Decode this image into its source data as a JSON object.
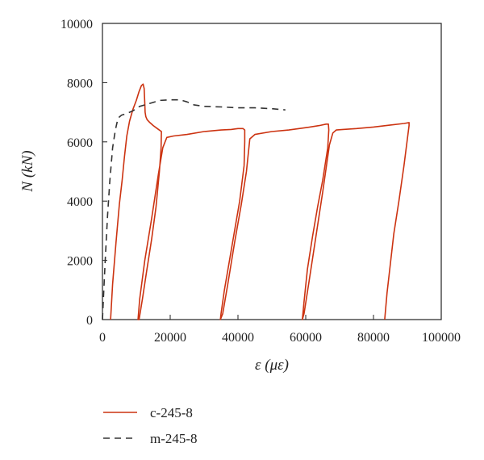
{
  "chart_data": {
    "type": "line",
    "xlabel": "ε (με)",
    "ylabel": "N (kN)",
    "xlim": [
      0,
      100000
    ],
    "ylim": [
      0,
      10000
    ],
    "xticks": [
      "0",
      "20000",
      "40000",
      "60000",
      "80000",
      "100000"
    ],
    "yticks": [
      "0",
      "2000",
      "4000",
      "6000",
      "8000",
      "10000"
    ],
    "grid": false,
    "legend_position": "bottom",
    "series": [
      {
        "name": "c-245-8",
        "color": "#cc3311",
        "style": "solid",
        "x": [
          2400,
          3000,
          4000,
          5000,
          5800,
          6500,
          7200,
          8000,
          9000,
          10000,
          10800,
          11500,
          12000,
          12300,
          12500,
          12600,
          12800,
          13200,
          14000,
          15000,
          16200,
          17400,
          17300,
          16800,
          15800,
          14500,
          13000,
          11800,
          10800,
          10500,
          11000,
          12500,
          14500,
          16500,
          17800,
          19000,
          21000,
          25000,
          30000,
          35000,
          38000,
          40000,
          41500,
          42000,
          42000,
          41800,
          40500,
          39000,
          37500,
          36000,
          35000,
          34800,
          35500,
          37000,
          39000,
          41000,
          42500,
          43500,
          45000,
          50000,
          55000,
          60000,
          64000,
          66000,
          66700,
          66800,
          66500,
          65000,
          63500,
          62000,
          60500,
          59500,
          59000,
          59500,
          61000,
          63000,
          65000,
          67000,
          68000,
          69000,
          71000,
          75000,
          80000,
          85000,
          89000,
          90500,
          90500,
          89000,
          87500,
          86000,
          85000,
          84000,
          83300
        ],
        "y": [
          0,
          1200,
          2600,
          3900,
          4700,
          5500,
          6200,
          6700,
          7100,
          7400,
          7700,
          7900,
          7950,
          7800,
          7300,
          7000,
          6850,
          6750,
          6650,
          6550,
          6450,
          6350,
          5800,
          5000,
          3800,
          2700,
          1600,
          700,
          0,
          0,
          700,
          2000,
          3400,
          4900,
          5800,
          6150,
          6200,
          6250,
          6350,
          6400,
          6420,
          6450,
          6450,
          6400,
          6000,
          5200,
          4000,
          3000,
          2000,
          1000,
          200,
          0,
          200,
          1200,
          2600,
          3900,
          5000,
          6100,
          6250,
          6350,
          6400,
          6480,
          6550,
          6600,
          6600,
          6400,
          5800,
          4700,
          3800,
          2800,
          1700,
          600,
          0,
          200,
          1300,
          2800,
          4300,
          5900,
          6300,
          6400,
          6420,
          6450,
          6500,
          6570,
          6620,
          6650,
          6550,
          5200,
          4000,
          2900,
          1900,
          900,
          0
        ]
      },
      {
        "name": "m-245-8",
        "color": "#333333",
        "style": "dashed",
        "x": [
          0,
          400,
          900,
          1500,
          2200,
          3000,
          3800,
          4600,
          5600,
          7000,
          9000,
          11000,
          14000,
          17000,
          20000,
          23000,
          25000,
          27000,
          30000,
          35000,
          40000,
          45000,
          50000,
          54000
        ],
        "y": [
          0,
          1000,
          2200,
          3500,
          4700,
          5800,
          6400,
          6800,
          6900,
          6950,
          7050,
          7200,
          7300,
          7400,
          7420,
          7420,
          7350,
          7250,
          7200,
          7180,
          7150,
          7150,
          7120,
          7080
        ]
      }
    ]
  }
}
